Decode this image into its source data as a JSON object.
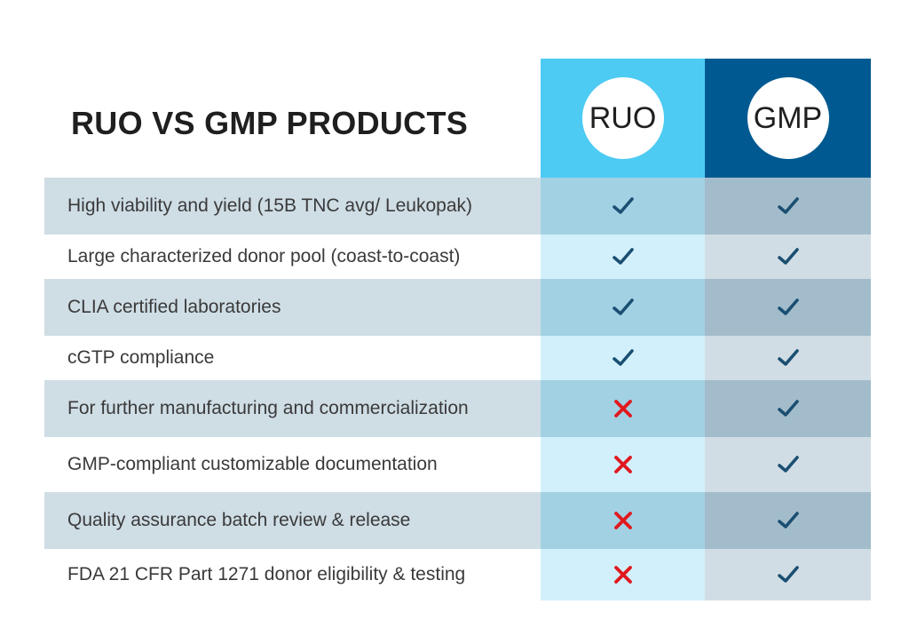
{
  "title": "RUO VS GMP PRODUCTS",
  "columns": [
    "RUO",
    "GMP"
  ],
  "colors": {
    "ruo_header": "#4dcbf3",
    "gmp_header": "#005a91",
    "check": "#1a4f72",
    "cross": "#e0191f"
  },
  "rows": [
    {
      "label": "High viability and yield (15B TNC avg/ Leukopak)",
      "ruo": "check",
      "gmp": "check"
    },
    {
      "label": "Large characterized donor pool (coast-to-coast)",
      "ruo": "check",
      "gmp": "check"
    },
    {
      "label": "CLIA certified laboratories",
      "ruo": "check",
      "gmp": "check"
    },
    {
      "label": "cGTP compliance",
      "ruo": "check",
      "gmp": "check"
    },
    {
      "label": "For further manufacturing and commercialization",
      "ruo": "cross",
      "gmp": "check"
    },
    {
      "label": "GMP-compliant customizable documentation",
      "ruo": "cross",
      "gmp": "check"
    },
    {
      "label": "Quality assurance batch review & release",
      "ruo": "cross",
      "gmp": "check"
    },
    {
      "label": "FDA 21 CFR Part 1271 donor eligibility & testing",
      "ruo": "cross",
      "gmp": "check"
    }
  ]
}
